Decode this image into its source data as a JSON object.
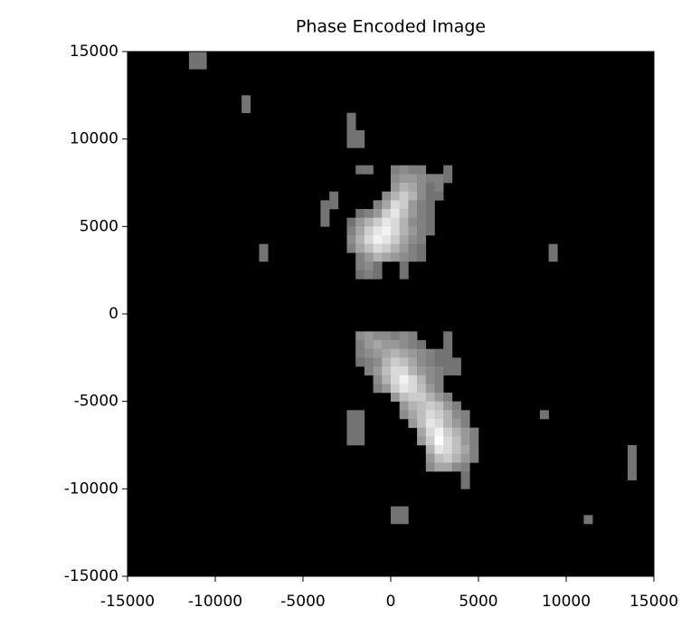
{
  "chart_data": {
    "type": "heatmap",
    "title": "Phase Encoded Image",
    "colormap": "gray",
    "clim": [
      0,
      1
    ],
    "xlim": [
      -15000,
      15000
    ],
    "ylim": [
      -15000,
      15000
    ],
    "xticks": [
      -15000,
      -10000,
      -5000,
      0,
      5000,
      10000,
      15000
    ],
    "yticks": [
      -15000,
      -10000,
      -5000,
      0,
      5000,
      10000,
      15000
    ],
    "rows": [
      {
        "y": 14750,
        "x": [
          -11250,
          -10750
        ],
        "values": [
          0.45,
          0.45
        ]
      },
      {
        "y": 14250,
        "x": [
          -11250,
          -10750
        ],
        "values": [
          0.45,
          0.45
        ]
      },
      {
        "y": 12250,
        "x": [
          -8250
        ],
        "values": [
          0.45
        ]
      },
      {
        "y": 11750,
        "x": [
          -8250
        ],
        "values": [
          0.45
        ]
      },
      {
        "y": 11250,
        "x": [
          -2250
        ],
        "values": [
          0.45
        ]
      },
      {
        "y": 10750,
        "x": [
          -2250
        ],
        "values": [
          0.45
        ]
      },
      {
        "y": 10250,
        "x": [
          -2250,
          -1750
        ],
        "values": [
          0.45,
          0.45
        ]
      },
      {
        "y": 9750,
        "x": [
          -2250,
          -1750
        ],
        "values": [
          0.45,
          0.45
        ]
      },
      {
        "y": 8250,
        "x": [
          -1750,
          -1250,
          250,
          750,
          1250,
          1750,
          3250
        ],
        "values": [
          0.45,
          0.45,
          0.5,
          0.55,
          0.5,
          0.5,
          0.45
        ]
      },
      {
        "y": 7750,
        "x": [
          250,
          750,
          1250,
          1750,
          2250,
          2750,
          3250
        ],
        "values": [
          0.55,
          0.6,
          0.6,
          0.55,
          0.5,
          0.5,
          0.45
        ]
      },
      {
        "y": 7250,
        "x": [
          250,
          750,
          1250,
          1750,
          2250,
          2750
        ],
        "values": [
          0.6,
          0.7,
          0.65,
          0.55,
          0.45,
          0.5
        ]
      },
      {
        "y": 6750,
        "x": [
          -3250,
          -250,
          250,
          750,
          1250,
          1750,
          2250,
          2750
        ],
        "values": [
          0.45,
          0.55,
          0.7,
          0.8,
          0.7,
          0.55,
          0.45,
          0.45
        ]
      },
      {
        "y": 6250,
        "x": [
          -3750,
          -3250,
          -750,
          -250,
          250,
          750,
          1250,
          1750,
          2250
        ],
        "values": [
          0.45,
          0.45,
          0.5,
          0.65,
          0.85,
          0.8,
          0.6,
          0.5,
          0.45
        ]
      },
      {
        "y": 5750,
        "x": [
          -3750,
          -1750,
          -1250,
          -750,
          -250,
          250,
          750,
          1250,
          1750,
          2250
        ],
        "values": [
          0.45,
          0.45,
          0.5,
          0.6,
          0.8,
          0.9,
          0.75,
          0.6,
          0.5,
          0.45
        ]
      },
      {
        "y": 5250,
        "x": [
          -3750,
          -2250,
          -1750,
          -1250,
          -750,
          -250,
          250,
          750,
          1250,
          1750,
          2250
        ],
        "values": [
          0.45,
          0.45,
          0.6,
          0.7,
          0.8,
          0.9,
          0.85,
          0.7,
          0.55,
          0.5,
          0.45
        ]
      },
      {
        "y": 4750,
        "x": [
          -2250,
          -1750,
          -1250,
          -750,
          -250,
          250,
          750,
          1250,
          1750,
          2250
        ],
        "values": [
          0.5,
          0.65,
          0.8,
          0.9,
          0.95,
          0.85,
          0.7,
          0.6,
          0.5,
          0.45
        ]
      },
      {
        "y": 4250,
        "x": [
          -2250,
          -1750,
          -1250,
          -750,
          -250,
          250,
          750,
          1250,
          1750
        ],
        "values": [
          0.55,
          0.7,
          0.85,
          0.95,
          0.9,
          0.8,
          0.65,
          0.55,
          0.5
        ]
      },
      {
        "y": 3750,
        "x": [
          -7250,
          -2250,
          -1750,
          -1250,
          -750,
          -250,
          250,
          750,
          1250,
          1750,
          9250
        ],
        "values": [
          0.45,
          0.5,
          0.65,
          0.75,
          0.85,
          0.8,
          0.7,
          0.6,
          0.5,
          0.45,
          0.45
        ]
      },
      {
        "y": 3250,
        "x": [
          -7250,
          -1750,
          -1250,
          -750,
          -250,
          250,
          750,
          1250,
          1750,
          9250
        ],
        "values": [
          0.45,
          0.5,
          0.6,
          0.7,
          0.65,
          0.6,
          0.55,
          0.5,
          0.45,
          0.45
        ]
      },
      {
        "y": 2750,
        "x": [
          -1750,
          -1250,
          -750,
          750
        ],
        "values": [
          0.5,
          0.55,
          0.45,
          0.45
        ]
      },
      {
        "y": 2250,
        "x": [
          -1750,
          -1250,
          -750,
          750
        ],
        "values": [
          0.45,
          0.5,
          0.45,
          0.45
        ]
      },
      {
        "y": -1250,
        "x": [
          -1750,
          -1250,
          -750,
          -250,
          250,
          750,
          1250,
          3250
        ],
        "values": [
          0.55,
          0.6,
          0.55,
          0.55,
          0.5,
          0.55,
          0.5,
          0.45
        ]
      },
      {
        "y": -1750,
        "x": [
          -1750,
          -1250,
          -750,
          -250,
          250,
          750,
          1250,
          1750,
          3250
        ],
        "values": [
          0.5,
          0.6,
          0.65,
          0.6,
          0.6,
          0.55,
          0.5,
          0.45,
          0.45
        ]
      },
      {
        "y": -2250,
        "x": [
          -1750,
          -1250,
          -750,
          -250,
          250,
          750,
          1250,
          1750,
          2250,
          2750,
          3250
        ],
        "values": [
          0.5,
          0.55,
          0.6,
          0.65,
          0.7,
          0.65,
          0.6,
          0.55,
          0.5,
          0.45,
          0.45
        ]
      },
      {
        "y": -2750,
        "x": [
          -1750,
          -1250,
          -750,
          -250,
          250,
          750,
          1250,
          1750,
          2250,
          2750,
          3250,
          3750
        ],
        "values": [
          0.45,
          0.5,
          0.55,
          0.7,
          0.8,
          0.75,
          0.65,
          0.55,
          0.5,
          0.45,
          0.45,
          0.45
        ]
      },
      {
        "y": -3250,
        "x": [
          -1250,
          -750,
          -250,
          250,
          750,
          1250,
          1750,
          2250,
          2750,
          3250,
          3750
        ],
        "values": [
          0.5,
          0.6,
          0.75,
          0.85,
          0.85,
          0.7,
          0.6,
          0.55,
          0.5,
          0.45,
          0.45
        ]
      },
      {
        "y": -3750,
        "x": [
          -750,
          -250,
          250,
          750,
          1250,
          1750,
          2250,
          2750
        ],
        "values": [
          0.55,
          0.7,
          0.85,
          0.95,
          0.85,
          0.7,
          0.55,
          0.5
        ]
      },
      {
        "y": -4250,
        "x": [
          -750,
          -250,
          250,
          750,
          1250,
          1750,
          2250,
          2750
        ],
        "values": [
          0.5,
          0.6,
          0.8,
          0.9,
          0.85,
          0.75,
          0.6,
          0.5
        ]
      },
      {
        "y": -4750,
        "x": [
          250,
          750,
          1250,
          1750,
          2250,
          2750,
          3250
        ],
        "values": [
          0.6,
          0.75,
          0.8,
          0.8,
          0.7,
          0.6,
          0.5
        ]
      },
      {
        "y": -5250,
        "x": [
          750,
          1250,
          1750,
          2250,
          2750,
          3250,
          3750
        ],
        "values": [
          0.6,
          0.7,
          0.75,
          0.8,
          0.75,
          0.6,
          0.5
        ]
      },
      {
        "y": -5750,
        "x": [
          -2250,
          -1750,
          750,
          1250,
          1750,
          2250,
          2750,
          3250,
          3750,
          4250,
          8750
        ],
        "values": [
          0.45,
          0.45,
          0.55,
          0.65,
          0.75,
          0.85,
          0.8,
          0.7,
          0.55,
          0.5,
          0.45
        ]
      },
      {
        "y": -6250,
        "x": [
          -2250,
          -1750,
          1250,
          1750,
          2250,
          2750,
          3250,
          3750,
          4250
        ],
        "values": [
          0.45,
          0.45,
          0.6,
          0.75,
          0.9,
          0.85,
          0.7,
          0.6,
          0.5
        ]
      },
      {
        "y": -6750,
        "x": [
          -2250,
          -1750,
          1750,
          2250,
          2750,
          3250,
          3750,
          4250,
          4750
        ],
        "values": [
          0.45,
          0.45,
          0.65,
          0.85,
          0.95,
          0.8,
          0.7,
          0.6,
          0.5
        ]
      },
      {
        "y": -7250,
        "x": [
          -2250,
          -1750,
          1750,
          2250,
          2750,
          3250,
          3750,
          4250,
          4750
        ],
        "values": [
          0.45,
          0.45,
          0.6,
          0.8,
          1,
          0.85,
          0.75,
          0.6,
          0.5
        ]
      },
      {
        "y": -7750,
        "x": [
          2250,
          2750,
          3250,
          3750,
          4250,
          4750,
          13750
        ],
        "values": [
          0.7,
          0.9,
          0.85,
          0.75,
          0.65,
          0.5,
          0.45
        ]
      },
      {
        "y": -8250,
        "x": [
          2250,
          2750,
          3250,
          3750,
          4250,
          4750,
          13750
        ],
        "values": [
          0.6,
          0.75,
          0.8,
          0.7,
          0.6,
          0.5,
          0.45
        ]
      },
      {
        "y": -8750,
        "x": [
          2250,
          2750,
          3250,
          3750,
          4250,
          13750
        ],
        "values": [
          0.55,
          0.65,
          0.65,
          0.55,
          0.5,
          0.45
        ]
      },
      {
        "y": -9250,
        "x": [
          4250,
          13750
        ],
        "values": [
          0.45,
          0.45
        ]
      },
      {
        "y": -9750,
        "x": [
          4250
        ],
        "values": [
          0.45
        ]
      },
      {
        "y": -11250,
        "x": [
          250,
          750
        ],
        "values": [
          0.45,
          0.45
        ]
      },
      {
        "y": -11750,
        "x": [
          250,
          750,
          11250
        ],
        "values": [
          0.45,
          0.45,
          0.45
        ]
      }
    ]
  }
}
